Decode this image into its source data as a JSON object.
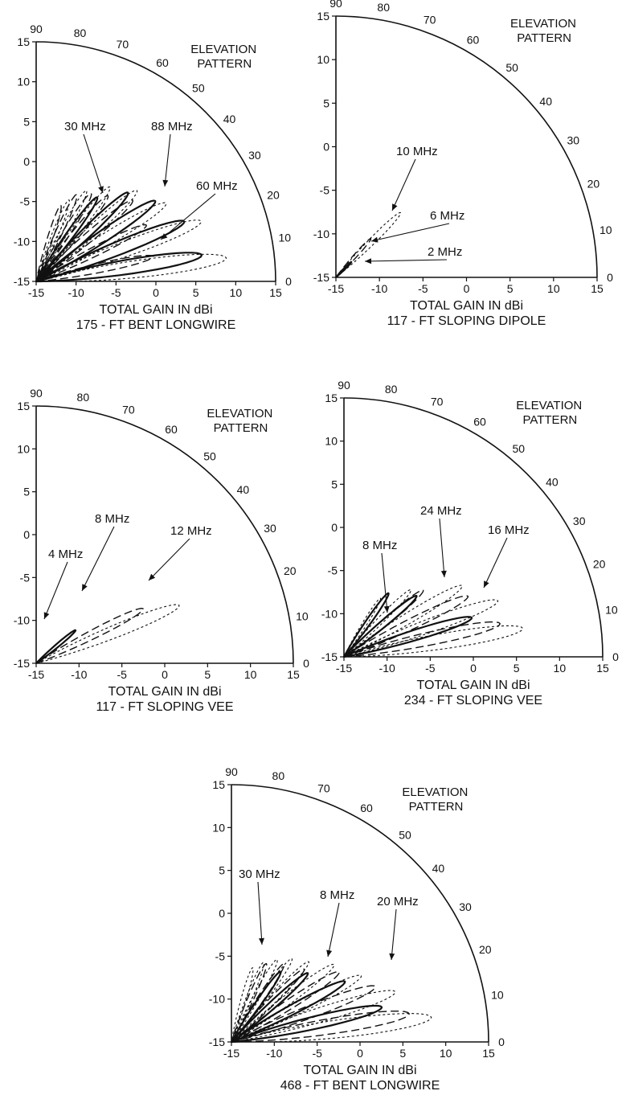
{
  "figure": {
    "panel_header": [
      "ELEVATION",
      "PATTERN"
    ],
    "x_label": "TOTAL GAIN IN dBi"
  },
  "chart_data": [
    {
      "type": "polar-elevation",
      "title": "ELEVATION PATTERN",
      "caption": "175 - FT BENT LONGWIRE",
      "xlabel": "TOTAL GAIN IN dBi",
      "radial_range_dBi": [
        -15,
        15
      ],
      "radial_ticks": [
        -15,
        -10,
        -5,
        0,
        5,
        10,
        15
      ],
      "elevation_angle_ticks": [
        0,
        10,
        20,
        30,
        40,
        50,
        60,
        70,
        80,
        90
      ],
      "series": [
        {
          "name": "30 MHz",
          "style": "dashed-long",
          "lobes": [
            {
              "elev": 12,
              "peak_dBi": 0.0
            },
            {
              "elev": 27,
              "peak_dBi": 0.5
            },
            {
              "elev": 40,
              "peak_dBi": 0.8
            },
            {
              "elev": 50,
              "peak_dBi": -1.0
            },
            {
              "elev": 58,
              "peak_dBi": -2.0
            },
            {
              "elev": 65,
              "peak_dBi": -3.0
            },
            {
              "elev": 72,
              "peak_dBi": -5.0
            }
          ]
        },
        {
          "name": "60 MHz",
          "style": "solid",
          "lobes": [
            {
              "elev": 9,
              "peak_dBi": 6.0
            },
            {
              "elev": 22,
              "peak_dBi": 5.0
            },
            {
              "elev": 34,
              "peak_dBi": 3.0
            },
            {
              "elev": 44,
              "peak_dBi": 1.0
            },
            {
              "elev": 54,
              "peak_dBi": -2.0
            }
          ]
        },
        {
          "name": "88 MHz",
          "style": "dotted",
          "lobes": [
            {
              "elev": 7,
              "peak_dBi": 9.0
            },
            {
              "elev": 20,
              "peak_dBi": 7.0
            },
            {
              "elev": 31,
              "peak_dBi": 4.0
            },
            {
              "elev": 42,
              "peak_dBi": 2.0
            },
            {
              "elev": 52,
              "peak_dBi": 0.0
            },
            {
              "elev": 61,
              "peak_dBi": -2.0
            },
            {
              "elev": 68,
              "peak_dBi": -4.0
            }
          ]
        }
      ],
      "annotations": [
        {
          "text": "30 MHz",
          "series": "30 MHz"
        },
        {
          "text": "88 MHz",
          "series": "88 MHz"
        },
        {
          "text": "60 MHz",
          "series": "60 MHz"
        }
      ]
    },
    {
      "type": "polar-elevation",
      "title": "ELEVATION PATTERN",
      "caption": "117 - FT SLOPING DIPOLE",
      "xlabel": "TOTAL GAIN IN dBi",
      "radial_range_dBi": [
        -15,
        15
      ],
      "radial_ticks": [
        -15,
        -10,
        -5,
        0,
        5,
        10,
        15
      ],
      "elevation_angle_ticks": [
        0,
        10,
        20,
        30,
        40,
        50,
        60,
        70,
        80,
        90
      ],
      "series": [
        {
          "name": "2 MHz",
          "style": "solid",
          "lobes": [
            {
              "elev": 45,
              "peak_dBi": -12.5
            }
          ]
        },
        {
          "name": "6 MHz",
          "style": "dashed-long",
          "lobes": [
            {
              "elev": 48,
              "peak_dBi": -9.0
            }
          ]
        },
        {
          "name": "10 MHz",
          "style": "dotted",
          "lobes": [
            {
              "elev": 45,
              "peak_dBi": -4.5
            }
          ]
        }
      ],
      "annotations": [
        {
          "text": "10 MHz",
          "series": "10 MHz"
        },
        {
          "text": "6 MHz",
          "series": "6 MHz"
        },
        {
          "text": "2 MHz",
          "series": "2 MHz"
        }
      ]
    },
    {
      "type": "polar-elevation",
      "title": "ELEVATION PATTERN",
      "caption": "117 - FT SLOPING VEE",
      "xlabel": "TOTAL GAIN IN dBi",
      "radial_range_dBi": [
        -15,
        15
      ],
      "radial_ticks": [
        -15,
        -10,
        -5,
        0,
        5,
        10,
        15
      ],
      "elevation_angle_ticks": [
        0,
        10,
        20,
        30,
        40,
        50,
        60,
        70,
        80,
        90
      ],
      "series": [
        {
          "name": "4 MHz",
          "style": "solid",
          "lobes": [
            {
              "elev": 40,
              "peak_dBi": -9.0
            }
          ]
        },
        {
          "name": "8 MHz",
          "style": "dashed-long",
          "lobes": [
            {
              "elev": 27,
              "peak_dBi": -1.0
            }
          ]
        },
        {
          "name": "12 MHz",
          "style": "dotted",
          "lobes": [
            {
              "elev": 22,
              "peak_dBi": 3.0
            }
          ]
        }
      ],
      "annotations": [
        {
          "text": "4 MHz",
          "series": "4 MHz"
        },
        {
          "text": "8 MHz",
          "series": "8 MHz"
        },
        {
          "text": "12 MHz",
          "series": "12 MHz"
        }
      ]
    },
    {
      "type": "polar-elevation",
      "title": "ELEVATION PATTERN",
      "caption": "234 - FT SLOPING VEE",
      "xlabel": "TOTAL GAIN IN dBi",
      "radial_range_dBi": [
        -15,
        15
      ],
      "radial_ticks": [
        -15,
        -10,
        -5,
        0,
        5,
        10,
        15
      ],
      "elevation_angle_ticks": [
        0,
        10,
        20,
        30,
        40,
        50,
        60,
        70,
        80,
        90
      ],
      "series": [
        {
          "name": "8 MHz",
          "style": "solid",
          "lobes": [
            {
              "elev": 17,
              "peak_dBi": 0.5
            },
            {
              "elev": 40,
              "peak_dBi": -4.0
            },
            {
              "elev": 55,
              "peak_dBi": -6.0
            }
          ]
        },
        {
          "name": "16 MHz",
          "style": "dashed-long",
          "lobes": [
            {
              "elev": 12,
              "peak_dBi": 3.5
            },
            {
              "elev": 26,
              "peak_dBi": 1.0
            },
            {
              "elev": 40,
              "peak_dBi": -3.0
            },
            {
              "elev": 55,
              "peak_dBi": -6.0
            }
          ]
        },
        {
          "name": "24 MHz",
          "style": "dotted",
          "lobes": [
            {
              "elev": 9,
              "peak_dBi": 6.0
            },
            {
              "elev": 20,
              "peak_dBi": 4.0
            },
            {
              "elev": 31,
              "peak_dBi": 1.0
            },
            {
              "elev": 45,
              "peak_dBi": -4.0
            },
            {
              "elev": 58,
              "peak_dBi": -7.0
            }
          ]
        }
      ],
      "annotations": [
        {
          "text": "8 MHz",
          "series": "8 MHz"
        },
        {
          "text": "24 MHz",
          "series": "24 MHz"
        },
        {
          "text": "16 MHz",
          "series": "16 MHz"
        }
      ]
    },
    {
      "type": "polar-elevation",
      "title": "ELEVATION PATTERN",
      "caption": "468 - FT BENT LONGWIRE",
      "xlabel": "TOTAL GAIN IN dBi",
      "radial_range_dBi": [
        -15,
        15
      ],
      "radial_ticks": [
        -15,
        -10,
        -5,
        0,
        5,
        10,
        15
      ],
      "elevation_angle_ticks": [
        0,
        10,
        20,
        30,
        40,
        50,
        60,
        70,
        80,
        90
      ],
      "series": [
        {
          "name": "8 MHz",
          "style": "solid",
          "lobes": [
            {
              "elev": 13,
              "peak_dBi": 3.0
            },
            {
              "elev": 28,
              "peak_dBi": 0.0
            },
            {
              "elev": 42,
              "peak_dBi": -3.0
            },
            {
              "elev": 55,
              "peak_dBi": -5.0
            }
          ]
        },
        {
          "name": "20 MHz",
          "style": "dashed-long",
          "lobes": [
            {
              "elev": 9,
              "peak_dBi": 6.0
            },
            {
              "elev": 21,
              "peak_dBi": 3.0
            },
            {
              "elev": 33,
              "peak_dBi": 0.0
            },
            {
              "elev": 45,
              "peak_dBi": -3.0
            },
            {
              "elev": 56,
              "peak_dBi": -4.0
            },
            {
              "elev": 66,
              "peak_dBi": -5.0
            }
          ]
        },
        {
          "name": "30 MHz",
          "style": "dotted",
          "lobes": [
            {
              "elev": 7,
              "peak_dBi": 8.5
            },
            {
              "elev": 17,
              "peak_dBi": 5.0
            },
            {
              "elev": 27,
              "peak_dBi": 2.0
            },
            {
              "elev": 37,
              "peak_dBi": 0.0
            },
            {
              "elev": 46,
              "peak_dBi": -2.0
            },
            {
              "elev": 54,
              "peak_dBi": -3.0
            },
            {
              "elev": 61,
              "peak_dBi": -4.0
            },
            {
              "elev": 68,
              "peak_dBi": -5.0
            },
            {
              "elev": 74,
              "peak_dBi": -6.0
            }
          ]
        }
      ],
      "annotations": [
        {
          "text": "30 MHz",
          "series": "30 MHz"
        },
        {
          "text": "8 MHz",
          "series": "8 MHz"
        },
        {
          "text": "20 MHz",
          "series": "20 MHz"
        }
      ]
    }
  ]
}
